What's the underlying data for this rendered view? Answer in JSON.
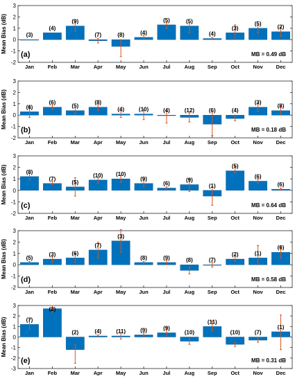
{
  "chart_data": [
    {
      "type": "bar",
      "panel_label": "(a)",
      "ylabel": "Mean Bias (dB)",
      "ylim": [
        -2,
        3
      ],
      "yticks": [
        -2,
        -1,
        0,
        1,
        2,
        3
      ],
      "categories": [
        "Jan",
        "Feb",
        "Mar",
        "Apr",
        "May",
        "Jun",
        "Jul",
        "Aug",
        "Sep",
        "Oct",
        "Nov",
        "Dec"
      ],
      "values": [
        0.0,
        0.6,
        1.2,
        -0.1,
        -0.6,
        0.2,
        1.3,
        1.2,
        0.1,
        0.6,
        1.0,
        0.7
      ],
      "err_low": [
        0.0,
        0.6,
        0.7,
        -0.3,
        -1.5,
        0.0,
        1.0,
        0.6,
        0.0,
        0.0,
        0.6,
        0.3
      ],
      "err_high": [
        0.0,
        0.6,
        1.6,
        0.1,
        0.0,
        0.4,
        1.5,
        1.5,
        0.2,
        1.3,
        1.3,
        1.1
      ],
      "counts": [
        "(3)",
        "(4)",
        "(9)",
        "(7)",
        "(8)",
        "(4)",
        "(5)",
        "(5)",
        "(4)",
        "(3)",
        "(5)",
        "(2)"
      ],
      "mb_text": "MB = 0.49 dB",
      "grid": false
    },
    {
      "type": "bar",
      "panel_label": "(b)",
      "ylabel": "Mean Bias (dB)",
      "ylim": [
        -2,
        3
      ],
      "yticks": [
        -2,
        -1,
        0,
        1,
        2,
        3
      ],
      "categories": [
        "Jan",
        "Feb",
        "Mar",
        "Apr",
        "May",
        "Jun",
        "Jul",
        "Aug",
        "Sep",
        "Oct",
        "Nov",
        "Dec"
      ],
      "values": [
        0.3,
        0.7,
        0.4,
        0.7,
        0.1,
        0.1,
        0.0,
        -0.2,
        -0.8,
        -0.3,
        0.7,
        0.4
      ],
      "err_low": [
        -0.2,
        0.5,
        0.1,
        0.4,
        -0.2,
        -0.4,
        -0.7,
        -0.6,
        -1.8,
        -0.5,
        0.3,
        0.0
      ],
      "err_high": [
        0.8,
        0.9,
        0.7,
        1.0,
        0.4,
        0.5,
        0.4,
        0.2,
        0.3,
        0.0,
        1.1,
        0.8
      ],
      "counts": [
        "(6)",
        "(6)",
        "(5)",
        "(8)",
        "(4)",
        "(10)",
        "(4)",
        "(12)",
        "(6)",
        "(4)",
        "(3)",
        "(8)"
      ],
      "mb_text": "MB = 0.18 dB",
      "grid": false
    },
    {
      "type": "bar",
      "panel_label": "(c)",
      "ylabel": "Mean Bias (dB)",
      "ylim": [
        -2,
        3
      ],
      "yticks": [
        -2,
        -1,
        0,
        1,
        2,
        3
      ],
      "categories": [
        "Jan",
        "Feb",
        "Mar",
        "Apr",
        "May",
        "Jun",
        "Jul",
        "Aug",
        "Sep",
        "Oct",
        "Nov",
        "Dec"
      ],
      "values": [
        1.2,
        0.6,
        0.3,
        0.9,
        1.0,
        0.6,
        0.2,
        0.5,
        -0.5,
        1.7,
        0.8,
        0.1
      ],
      "err_low": [
        0.9,
        0.5,
        -0.5,
        0.6,
        0.7,
        0.3,
        0.1,
        -0.1,
        -1.3,
        1.5,
        0.6,
        0.0
      ],
      "err_high": [
        1.5,
        0.8,
        1.1,
        1.1,
        1.3,
        1.0,
        0.3,
        1.0,
        0.3,
        2.1,
        1.0,
        0.2
      ],
      "counts": [
        "(8)",
        "(7)",
        "(5)",
        "(10)",
        "(10)",
        "(9)",
        "(6)",
        "(9)",
        "(1)",
        "(5)",
        "(6)",
        "(6)"
      ],
      "mb_text": "MB = 0.64 dB",
      "grid": false
    },
    {
      "type": "bar",
      "panel_label": "(d)",
      "ylabel": "Mean Bias (dB)",
      "ylim": [
        -2,
        3
      ],
      "yticks": [
        -2,
        -1,
        0,
        1,
        2,
        3
      ],
      "categories": [
        "Jan",
        "Feb",
        "Mar",
        "Apr",
        "May",
        "Jun",
        "Jul",
        "Aug",
        "Sep",
        "Oct",
        "Nov",
        "Dec"
      ],
      "values": [
        0.2,
        0.5,
        0.6,
        1.3,
        2.1,
        0.2,
        0.2,
        -0.5,
        0.0,
        0.5,
        0.6,
        1.1
      ],
      "err_low": [
        0.1,
        0.2,
        0.2,
        0.6,
        1.1,
        0.1,
        0.0,
        -0.8,
        -0.2,
        0.3,
        0.0,
        0.6
      ],
      "err_high": [
        0.3,
        0.7,
        1.0,
        2.0,
        3.1,
        0.3,
        0.4,
        -0.2,
        0.2,
        0.8,
        1.7,
        1.6
      ],
      "counts": [
        "(5)",
        "(3)",
        "(6)",
        "(7)",
        "(3)",
        "(8)",
        "(9)",
        "(8)",
        "(7)",
        "(2)",
        "(1)",
        "(6)"
      ],
      "mb_text": "MB = 0.58 dB",
      "grid": false
    },
    {
      "type": "bar",
      "panel_label": "(e)",
      "ylabel": "Mean Bias (dB)",
      "ylim": [
        -3,
        3
      ],
      "yticks": [
        -3,
        -2,
        -1,
        0,
        1,
        2,
        3
      ],
      "categories": [
        "Jan",
        "Feb",
        "Mar",
        "Apr",
        "May",
        "Jun",
        "Jul",
        "Aug",
        "Sep",
        "Oct",
        "Nov",
        "Dec"
      ],
      "values": [
        1.2,
        2.7,
        -1.2,
        0.1,
        0.1,
        0.2,
        0.4,
        -0.4,
        1.0,
        -0.7,
        -0.3,
        0.5
      ],
      "err_low": [
        0.7,
        2.4,
        -2.5,
        0.0,
        -0.2,
        0.0,
        0.0,
        -0.7,
        0.6,
        -0.9,
        -0.5,
        -1.2
      ],
      "err_high": [
        1.7,
        3.0,
        -0.7,
        0.2,
        0.4,
        0.4,
        0.9,
        -0.2,
        1.5,
        -0.5,
        -0.1,
        2.1
      ],
      "counts": [
        "(7)",
        "(2)",
        "(2)",
        "(4)",
        "(11)",
        "(9)",
        "(9)",
        "(10)",
        "(11)",
        "(10)",
        "(7)",
        "(1)"
      ],
      "mb_text": "MB = 0.31 dB",
      "grid": false
    }
  ],
  "colors": {
    "bar_fill": "#0072BD",
    "bar_stroke": "#0a4f86",
    "error_bar": "#D95319",
    "axis": "#262626",
    "text": "#000000"
  }
}
